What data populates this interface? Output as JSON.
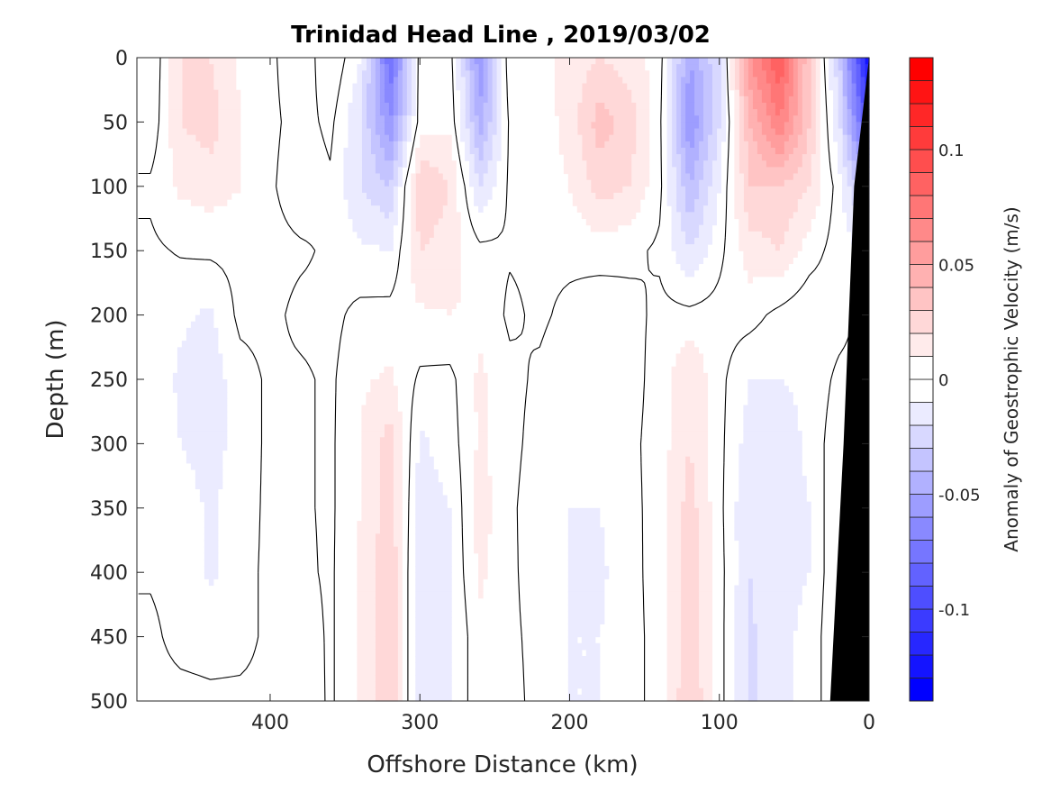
{
  "chart_data": {
    "type": "heatmap",
    "title": "Trinidad Head Line , 2019/03/02",
    "xlabel": "Offshore Distance (km)",
    "ylabel": "Depth (m)",
    "colorbar_label": "Anomaly of Geostrophic Velocity (m/s)",
    "x_reversed": true,
    "y_reversed": true,
    "xlim": [
      0,
      489
    ],
    "ylim": [
      0,
      500
    ],
    "x_ticks": [
      400,
      300,
      200,
      100,
      0
    ],
    "y_ticks": [
      0,
      50,
      100,
      150,
      200,
      250,
      300,
      350,
      400,
      450,
      500
    ],
    "colorbar_range": [
      -0.14,
      0.14
    ],
    "contour_level_step": 0.01,
    "colorbar_ticks": [
      {
        "value": 0.1,
        "label": "0.1"
      },
      {
        "value": 0.05,
        "label": "0.05"
      },
      {
        "value": 0,
        "label": "0"
      },
      {
        "value": -0.05,
        "label": "-0.05"
      },
      {
        "value": -0.1,
        "label": "-0.1"
      }
    ],
    "colormap": {
      "positive": "#ff0000",
      "zero": "#ffffff",
      "negative": "#0000ff"
    },
    "zero_contour_color": "#000000",
    "bathymetry_color": "#000000",
    "bathymetry": [
      [
        0,
        0
      ],
      [
        5,
        50
      ],
      [
        10,
        100
      ],
      [
        17,
        300
      ],
      [
        26,
        500
      ]
    ],
    "x": [
      0,
      20,
      40,
      60,
      80,
      100,
      120,
      140,
      160,
      180,
      200,
      220,
      240,
      260,
      280,
      300,
      320,
      340,
      360,
      380,
      400,
      420,
      440,
      460,
      480
    ],
    "depth": [
      0,
      50,
      100,
      150,
      200,
      250,
      300,
      350,
      400,
      450,
      500
    ],
    "values": [
      [
        -0.13,
        -0.03,
        0.03,
        0.09,
        0.06,
        -0.02,
        -0.05,
        0.005,
        0.015,
        0.02,
        0.015,
        0.005,
        0.008,
        -0.06,
        0.005,
        0.005,
        -0.08,
        -0.01,
        0.01,
        -0.01,
        0.003,
        0.008,
        0.02,
        0.02,
        -0.01
      ],
      [
        -0.1,
        -0.02,
        0.03,
        0.07,
        0.04,
        -0.02,
        -0.06,
        0.003,
        0.025,
        0.035,
        0.015,
        0.003,
        0.002,
        -0.045,
        0.008,
        0.005,
        -0.06,
        -0.02,
        0.003,
        -0.005,
        0.003,
        0.01,
        0.025,
        0.02,
        -0.008
      ],
      [
        -0.05,
        -0.005,
        0.02,
        0.03,
        0.03,
        -0.01,
        -0.04,
        0.003,
        0.02,
        0.025,
        0.01,
        0.003,
        0.002,
        -0.02,
        0.02,
        0.03,
        -0.03,
        -0.02,
        -0.002,
        -0.008,
        0.002,
        0.01,
        0.015,
        0.012,
        0.002
      ],
      [
        -0.01,
        -0.005,
        0.005,
        0.02,
        0.015,
        -0.003,
        -0.02,
        -0.002,
        0.003,
        0.005,
        0.003,
        0.002,
        0.001,
        0.003,
        0.015,
        0.02,
        -0.01,
        -0.008,
        -0.002,
        0.002,
        0.004,
        0.003,
        0.002,
        0.001,
        -0.002
      ],
      [
        0.005,
        -0.005,
        -0.008,
        -0.003,
        0.004,
        0.004,
        0.003,
        0.003,
        -0.004,
        -0.008,
        -0.003,
        0.002,
        -0.002,
        0.008,
        0.01,
        0.008,
        0.004,
        0.003,
        -0.003,
        -0.003,
        0.003,
        0.003,
        -0.012,
        -0.008,
        -0.003
      ],
      [
        0.005,
        0.003,
        -0.008,
        -0.01,
        -0.01,
        0.003,
        0.02,
        0.005,
        -0.005,
        -0.01,
        -0.008,
        -0.002,
        0.003,
        0.012,
        -0.003,
        -0.002,
        0.012,
        0.008,
        -0.002,
        0.002,
        0.002,
        -0.005,
        -0.015,
        -0.012,
        -0.003
      ],
      [
        0.005,
        0.008,
        -0.008,
        -0.015,
        -0.015,
        0.003,
        0.02,
        0.005,
        -0.003,
        -0.008,
        -0.008,
        -0.004,
        0.003,
        0.012,
        -0.005,
        -0.012,
        0.025,
        0.01,
        -0.002,
        0.002,
        0.002,
        -0.005,
        -0.015,
        -0.01,
        -0.002
      ],
      [
        0.005,
        0.01,
        -0.01,
        -0.015,
        -0.02,
        0.003,
        0.025,
        0.004,
        -0.003,
        -0.01,
        -0.01,
        -0.006,
        0.002,
        0.015,
        -0.01,
        -0.015,
        0.025,
        0.01,
        -0.002,
        0.002,
        0.002,
        -0.004,
        -0.012,
        -0.004,
        -0.002
      ],
      [
        0.005,
        0.01,
        -0.01,
        -0.012,
        -0.02,
        0.004,
        0.028,
        0.005,
        -0.004,
        -0.012,
        -0.01,
        -0.005,
        0.002,
        0.012,
        -0.01,
        -0.02,
        0.03,
        0.012,
        -0.002,
        0.003,
        0.002,
        -0.003,
        -0.012,
        -0.003,
        -0.001
      ],
      [
        0.005,
        0.012,
        -0.008,
        -0.012,
        -0.022,
        0.004,
        0.028,
        0.004,
        -0.004,
        -0.01,
        -0.01,
        -0.003,
        0.002,
        0.008,
        -0.012,
        -0.02,
        0.03,
        0.012,
        -0.002,
        0.008,
        0.002,
        -0.003,
        -0.004,
        -0.003,
        0.002
      ],
      [
        0.005,
        0.012,
        -0.008,
        -0.012,
        -0.022,
        0.004,
        0.03,
        0.004,
        -0.004,
        -0.01,
        -0.01,
        -0.003,
        0.003,
        0.008,
        -0.012,
        -0.02,
        0.03,
        0.012,
        -0.002,
        0.01,
        0.002,
        0.002,
        0.002,
        0.003,
        0.003
      ]
    ]
  }
}
